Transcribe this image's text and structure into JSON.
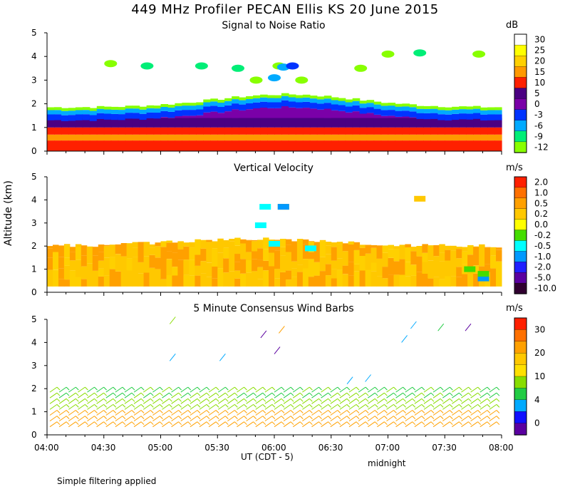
{
  "chart_data": [
    {
      "type": "heatmap",
      "title": "449 MHz Profiler PECAN Ellis KS 20 June 2015",
      "subtitle": "Signal to Noise Ratio",
      "colorbar_unit": "dB",
      "colorbar_ticks": [
        "30",
        "25",
        "20",
        "15",
        "10",
        "5",
        "0",
        "-3",
        "-6",
        "-9",
        "-12"
      ],
      "colorbar_colors": [
        "#ffffff",
        "#ffff00",
        "#ffd000",
        "#ff9900",
        "#ff2000",
        "#4b0082",
        "#7a00a8",
        "#0033ff",
        "#00aaff",
        "#00ee77",
        "#88ff00"
      ],
      "ylabel": "Altitude (km)",
      "ylim": [
        0,
        5
      ],
      "yticks": [
        "0",
        "1",
        "2",
        "3",
        "4",
        "5"
      ],
      "xticks": [
        "04:00",
        "04:30",
        "05:00",
        "05:30",
        "06:00",
        "06:30",
        "07:00",
        "07:30",
        "08:00"
      ],
      "x_range_hours_ut": [
        4,
        8
      ]
    },
    {
      "type": "heatmap",
      "subtitle": "Vertical Velocity",
      "colorbar_unit": "m/s",
      "colorbar_ticks": [
        "2.0",
        "1.0",
        "0.5",
        "0.2",
        "0.0",
        "-0.2",
        "-0.5",
        "-1.0",
        "-2.0",
        "-5.0",
        "-10.0"
      ],
      "colorbar_colors": [
        "#ff2000",
        "#ff7000",
        "#ffa000",
        "#ffc800",
        "#ffff00",
        "#44dd00",
        "#00ffff",
        "#0099ff",
        "#2020ff",
        "#5a00a0",
        "#300030"
      ],
      "ylim": [
        0,
        5
      ],
      "yticks": [
        "0",
        "1",
        "2",
        "3",
        "4",
        "5"
      ]
    },
    {
      "type": "scatter",
      "subtitle": "5 Minute Consensus Wind Barbs",
      "colorbar_unit": "m/s",
      "colorbar_ticks": [
        "30",
        "20",
        "10",
        "4",
        "0"
      ],
      "colorbar_colors": [
        "#ff2000",
        "#ff7000",
        "#ffa000",
        "#ffc800",
        "#ffe000",
        "#88dd00",
        "#22cc44",
        "#00aaff",
        "#1010ff",
        "#5a00a0"
      ],
      "ylim": [
        0,
        5
      ],
      "yticks": [
        "0",
        "1",
        "2",
        "3",
        "4",
        "5"
      ],
      "xticks": [
        "04:00",
        "04:30",
        "05:00",
        "05:30",
        "06:00",
        "06:30",
        "07:00",
        "07:30",
        "08:00"
      ]
    }
  ],
  "labels": {
    "main_title": "449 MHz Profiler PECAN Ellis KS 20 June 2015",
    "snr_title": "Signal to Noise Ratio",
    "vv_title": "Vertical Velocity",
    "wind_title": "5 Minute Consensus Wind Barbs",
    "snr_unit": "dB",
    "vv_unit": "m/s",
    "wind_unit": "m/s",
    "y_axis": "Altitude (km)",
    "x_axis": "UT  (CDT - 5)",
    "midnight": "midnight",
    "footer": "Simple filtering applied"
  }
}
